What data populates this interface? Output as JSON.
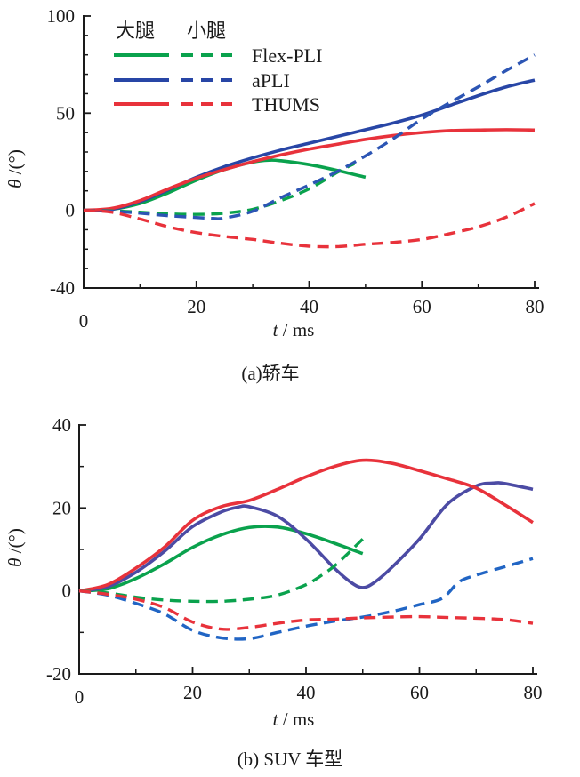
{
  "page": {
    "background": "#ffffff"
  },
  "legend": {
    "column_headers": [
      {
        "label": "大腿",
        "line": "solid"
      },
      {
        "label": "小腿",
        "line": "dashed"
      }
    ],
    "entries": [
      {
        "label": "Flex-PLI",
        "color": "#0AA24D"
      },
      {
        "label": "aPLI",
        "color": "#2846A6"
      },
      {
        "label": "THUMS",
        "color": "#E8323B"
      }
    ]
  },
  "chart_data": [
    {
      "id": "a",
      "type": "line",
      "caption": "(a)轿车",
      "xlabel": {
        "italic": "t",
        "rest": " / ms"
      },
      "ylabel": {
        "italic": "θ",
        "rest": " /(°)"
      },
      "xlim": [
        0,
        80
      ],
      "ylim": [
        -40,
        100
      ],
      "xticks_labeled": [
        0,
        20,
        40,
        60,
        80
      ],
      "xticks_minor": [
        10,
        30,
        50,
        70
      ],
      "yticks_labeled": [
        100,
        50,
        0,
        -40
      ],
      "yticks_minor": [
        90,
        80,
        70,
        60,
        40,
        30,
        20,
        10,
        -10,
        -20,
        -30
      ],
      "grid": false,
      "legend_position": "top-left",
      "series": [
        {
          "name": "Flex-PLI 大腿",
          "model": "Flex-PLI",
          "leg": "大腿",
          "line": "solid",
          "color": "#0AA24D",
          "x": [
            0,
            5,
            10,
            15,
            20,
            25,
            30,
            33,
            35,
            40,
            45,
            50
          ],
          "y": [
            0,
            0.5,
            3.5,
            9,
            15.5,
            21,
            24.8,
            25.8,
            25.5,
            23.5,
            20.5,
            17
          ]
        },
        {
          "name": "aPLI 大腿",
          "model": "aPLI",
          "leg": "大腿",
          "line": "solid",
          "color": "#2846A6",
          "x": [
            0,
            5,
            10,
            15,
            20,
            25,
            30,
            35,
            40,
            45,
            50,
            55,
            60,
            65,
            70,
            75,
            80
          ],
          "y": [
            0,
            0.5,
            4.5,
            10.5,
            17,
            22.5,
            27,
            31,
            34.5,
            38,
            41.5,
            45,
            49,
            54,
            59,
            63.5,
            67
          ]
        },
        {
          "name": "THUMS 大腿",
          "model": "THUMS",
          "leg": "大腿",
          "line": "solid",
          "color": "#E8323B",
          "x": [
            0,
            5,
            10,
            15,
            20,
            25,
            30,
            35,
            40,
            45,
            50,
            55,
            60,
            65,
            70,
            75,
            80
          ],
          "y": [
            0,
            1,
            5,
            11,
            16.5,
            21,
            25,
            28.5,
            31.5,
            34,
            36.5,
            38.5,
            40,
            41,
            41.3,
            41.5,
            41.3
          ]
        },
        {
          "name": "Flex-PLI 小腿",
          "model": "Flex-PLI",
          "leg": "小腿",
          "line": "dashed",
          "color": "#0AA24D",
          "x": [
            0,
            5,
            10,
            15,
            20,
            25,
            30,
            35,
            40,
            45,
            48
          ],
          "y": [
            0,
            -0.3,
            -1,
            -1.8,
            -2.1,
            -1.5,
            0.5,
            5,
            11,
            19.5,
            24
          ]
        },
        {
          "name": "aPLI 小腿",
          "model": "aPLI",
          "leg": "小腿",
          "line": "dashed",
          "color": "#2C55B4",
          "x": [
            0,
            5,
            10,
            15,
            20,
            23,
            25,
            30,
            35,
            40,
            45,
            50,
            55,
            60,
            65,
            70,
            75,
            80
          ],
          "y": [
            0,
            -0.5,
            -1.5,
            -2.8,
            -3.7,
            -4.2,
            -4,
            -0.5,
            6.5,
            13,
            20,
            28,
            37,
            47,
            55.5,
            63.5,
            72,
            80
          ]
        },
        {
          "name": "THUMS 小腿",
          "model": "THUMS",
          "leg": "小腿",
          "line": "dashed",
          "color": "#E8323B",
          "x": [
            0,
            5,
            10,
            15,
            20,
            25,
            30,
            35,
            40,
            45,
            50,
            55,
            60,
            65,
            70,
            75,
            80
          ],
          "y": [
            0,
            -1,
            -4.5,
            -8.5,
            -11.5,
            -13.5,
            -15,
            -17,
            -18.5,
            -18.7,
            -17.5,
            -16.5,
            -15,
            -12,
            -8.5,
            -3.5,
            3.5
          ]
        }
      ]
    },
    {
      "id": "b",
      "type": "line",
      "caption": "(b) SUV 车型",
      "xlabel": {
        "italic": "t",
        "rest": " / ms"
      },
      "ylabel": {
        "italic": "θ",
        "rest": " /(°)"
      },
      "xlim": [
        0,
        80
      ],
      "ylim": [
        -20,
        40
      ],
      "xticks_labeled": [
        0,
        20,
        40,
        60,
        80
      ],
      "xticks_minor": [
        10,
        30,
        50,
        70
      ],
      "yticks_labeled": [
        40,
        20,
        0,
        -20
      ],
      "yticks_minor": [
        30,
        10,
        -10
      ],
      "grid": false,
      "legend_position": "none",
      "series": [
        {
          "name": "Flex-PLI 大腿",
          "model": "Flex-PLI",
          "leg": "大腿",
          "line": "solid",
          "color": "#0AA24D",
          "x": [
            0,
            5,
            10,
            15,
            20,
            25,
            30,
            35,
            40,
            45,
            50
          ],
          "y": [
            0,
            0.5,
            3,
            6.5,
            10.5,
            13.5,
            15.3,
            15.4,
            13.8,
            11.5,
            9
          ]
        },
        {
          "name": "aPLI 大腿",
          "model": "aPLI",
          "leg": "大腿",
          "line": "solid",
          "color": "#4C4BA4",
          "x": [
            0,
            5,
            10,
            15,
            20,
            25,
            28,
            30,
            35,
            40,
            45,
            48,
            50,
            52,
            55,
            60,
            65,
            70,
            73,
            75,
            80
          ],
          "y": [
            0,
            1,
            4.5,
            9.5,
            15.5,
            19,
            20.2,
            20.3,
            18,
            12.5,
            5.5,
            2,
            0.8,
            2,
            5.5,
            12.5,
            21,
            25.3,
            26,
            25.9,
            24.5
          ]
        },
        {
          "name": "THUMS 大腿",
          "model": "THUMS",
          "leg": "大腿",
          "line": "solid",
          "color": "#E8323B",
          "x": [
            0,
            5,
            10,
            15,
            20,
            25,
            30,
            35,
            40,
            45,
            50,
            55,
            60,
            65,
            70,
            75,
            80
          ],
          "y": [
            0,
            1.5,
            5.5,
            10.5,
            17,
            20.3,
            21.8,
            24.5,
            27.5,
            30,
            31.5,
            30.8,
            29,
            27,
            24.8,
            20.8,
            16.5
          ]
        },
        {
          "name": "Flex-PLI 小腿",
          "model": "Flex-PLI",
          "leg": "小腿",
          "line": "dashed",
          "color": "#0AA24D",
          "x": [
            0,
            5,
            10,
            15,
            20,
            25,
            30,
            35,
            40,
            43,
            45,
            47,
            50
          ],
          "y": [
            0,
            -0.5,
            -1.5,
            -2.2,
            -2.5,
            -2.5,
            -2,
            -1,
            1.5,
            4,
            6,
            8.5,
            12.5
          ]
        },
        {
          "name": "aPLI 小腿",
          "model": "aPLI",
          "leg": "小腿",
          "line": "dashed",
          "color": "#2165C4",
          "x": [
            0,
            5,
            10,
            15,
            20,
            25,
            30,
            35,
            40,
            45,
            50,
            55,
            60,
            64,
            67,
            70,
            75,
            80
          ],
          "y": [
            0,
            -1,
            -3,
            -5.5,
            -9.5,
            -11.3,
            -11.5,
            -10,
            -8.5,
            -7.3,
            -6.3,
            -5,
            -3.3,
            -1.8,
            2.2,
            3.8,
            5.8,
            7.8
          ]
        },
        {
          "name": "THUMS 小腿",
          "model": "THUMS",
          "leg": "小腿",
          "line": "dashed",
          "color": "#E8323B",
          "x": [
            0,
            5,
            10,
            15,
            20,
            25,
            30,
            35,
            40,
            45,
            50,
            55,
            60,
            65,
            70,
            75,
            80
          ],
          "y": [
            0,
            -0.8,
            -2,
            -4,
            -7.5,
            -9.2,
            -8.8,
            -7.8,
            -7,
            -6.8,
            -6.5,
            -6.3,
            -6.2,
            -6.4,
            -6.6,
            -6.9,
            -7.8
          ]
        }
      ]
    }
  ]
}
